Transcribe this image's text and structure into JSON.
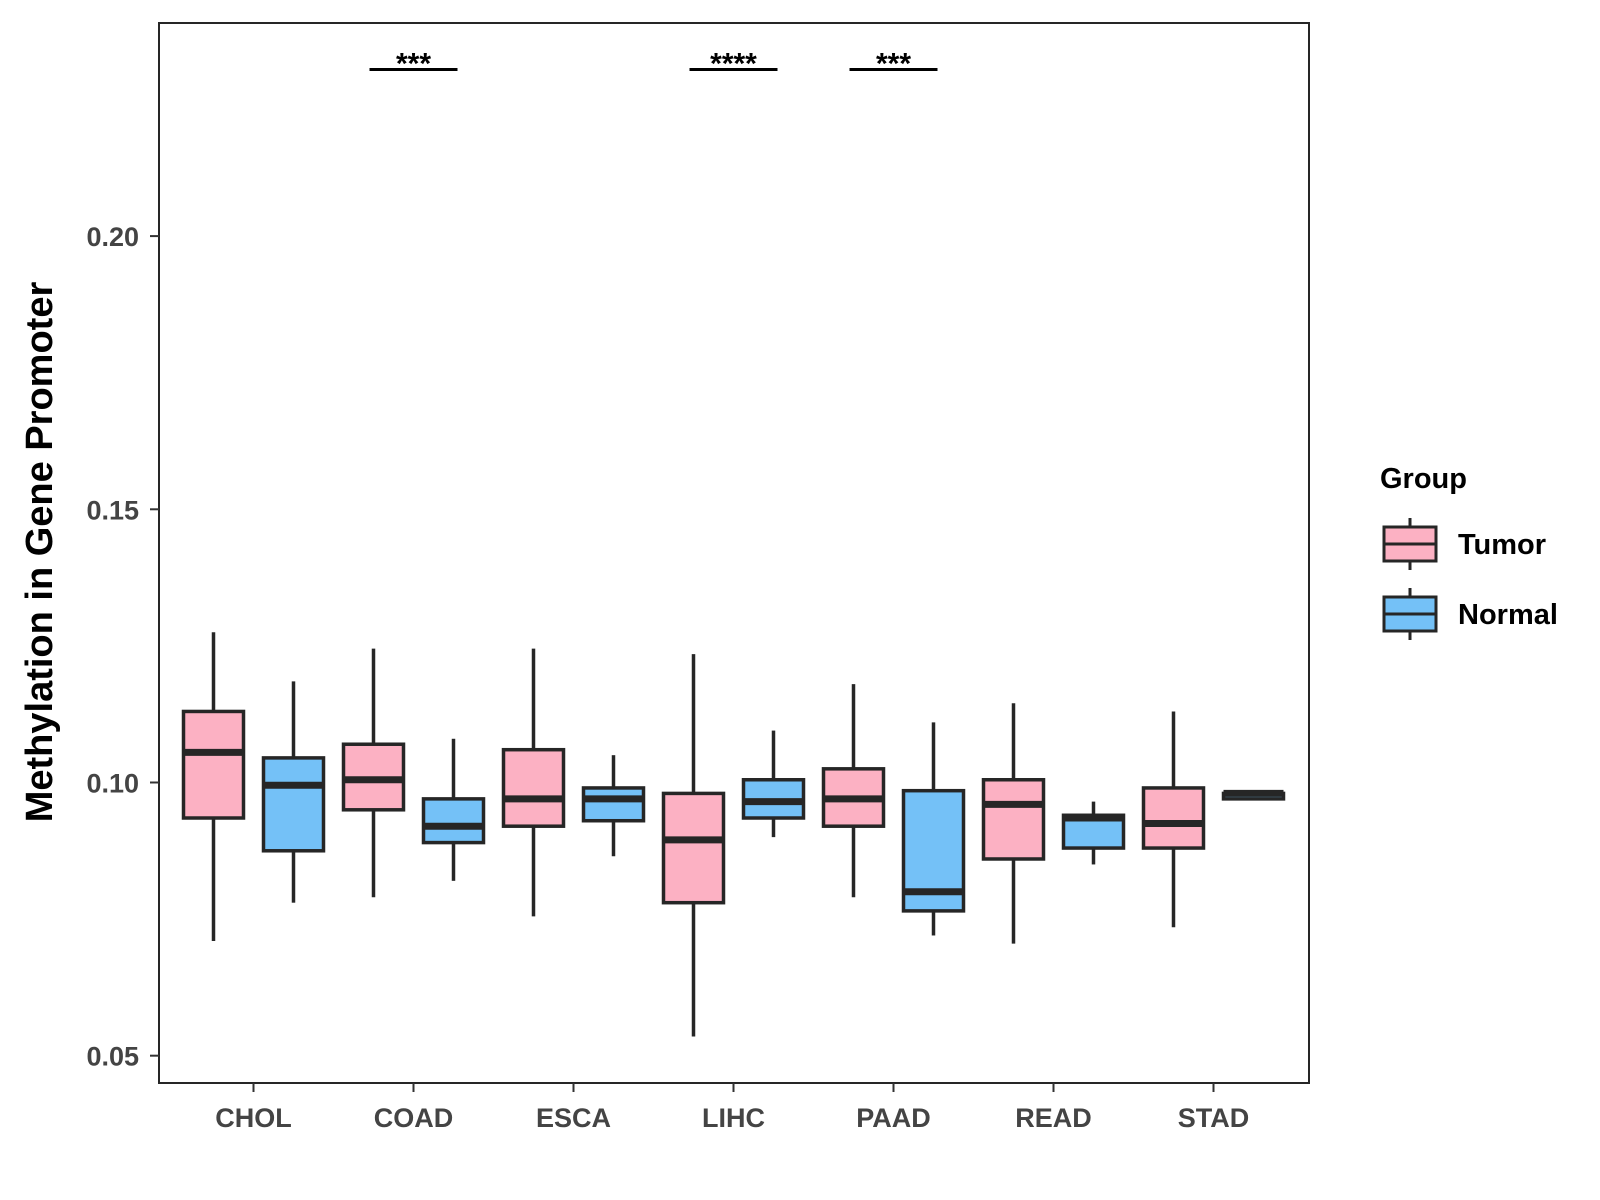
{
  "chart_data": {
    "type": "boxplot",
    "title": "",
    "xlabel": "",
    "ylabel": "Methylation in Gene Promoter",
    "ylim": [
      0.045,
      0.239
    ],
    "yticks": [
      0.05,
      0.1,
      0.15,
      0.2
    ],
    "ytick_labels": [
      "0.05",
      "0.10",
      "0.15",
      "0.20"
    ],
    "grid": false,
    "legend": {
      "title": "Group",
      "position": "right"
    },
    "categories": [
      "CHOL",
      "COAD",
      "ESCA",
      "LIHC",
      "PAAD",
      "READ",
      "STAD"
    ],
    "series": [
      {
        "name": "Tumor",
        "color": "#FCB1C3",
        "boxes": [
          {
            "min": 0.071,
            "q1": 0.0935,
            "median": 0.1055,
            "q3": 0.113,
            "max": 0.1275
          },
          {
            "min": 0.079,
            "q1": 0.095,
            "median": 0.1005,
            "q3": 0.107,
            "max": 0.1245
          },
          {
            "min": 0.0755,
            "q1": 0.092,
            "median": 0.097,
            "q3": 0.106,
            "max": 0.1245
          },
          {
            "min": 0.0535,
            "q1": 0.078,
            "median": 0.0895,
            "q3": 0.098,
            "max": 0.1235
          },
          {
            "min": 0.079,
            "q1": 0.092,
            "median": 0.097,
            "q3": 0.1025,
            "max": 0.118
          },
          {
            "min": 0.0705,
            "q1": 0.086,
            "median": 0.096,
            "q3": 0.1005,
            "max": 0.1145
          },
          {
            "min": 0.0735,
            "q1": 0.088,
            "median": 0.0925,
            "q3": 0.099,
            "max": 0.113
          }
        ]
      },
      {
        "name": "Normal",
        "color": "#74C1F7",
        "boxes": [
          {
            "min": 0.078,
            "q1": 0.0875,
            "median": 0.0995,
            "q3": 0.1045,
            "max": 0.1185
          },
          {
            "min": 0.082,
            "q1": 0.089,
            "median": 0.092,
            "q3": 0.097,
            "max": 0.108
          },
          {
            "min": 0.0865,
            "q1": 0.093,
            "median": 0.097,
            "q3": 0.099,
            "max": 0.105
          },
          {
            "min": 0.09,
            "q1": 0.0935,
            "median": 0.0965,
            "q3": 0.1005,
            "max": 0.1095
          },
          {
            "min": 0.072,
            "q1": 0.0765,
            "median": 0.08,
            "q3": 0.0985,
            "max": 0.111
          },
          {
            "min": 0.085,
            "q1": 0.088,
            "median": 0.0935,
            "q3": 0.094,
            "max": 0.0965
          },
          {
            "min": 0.097,
            "q1": 0.097,
            "median": 0.098,
            "q3": 0.098,
            "max": 0.0985
          }
        ]
      }
    ],
    "annotations": [
      {
        "category": "COAD",
        "text": "***",
        "y": 0.2305
      },
      {
        "category": "LIHC",
        "text": "****",
        "y": 0.2305
      },
      {
        "category": "PAAD",
        "text": "***",
        "y": 0.2305
      }
    ]
  }
}
